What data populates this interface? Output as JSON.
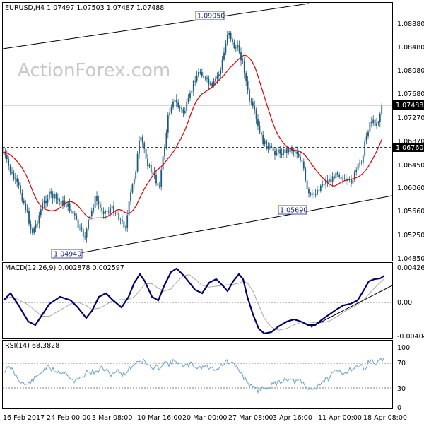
{
  "colors": {
    "candle": "#1f5a7a",
    "ma": "#e00000",
    "macd": "#00006e",
    "signal": "#aaaaaa",
    "rsi": "#6a9fd1",
    "grid": "#000000"
  },
  "watermark": "ActionForex.com",
  "main": {
    "title": "EURUSD,H4  1.07497 1.07503 1.07487 1.07488",
    "y_ticks": [
      "1.08880",
      "1.08480",
      "1.08080",
      "1.07680",
      "1.07270",
      "1.06870",
      "1.06450",
      "1.06060",
      "1.05660",
      "1.05250",
      "1.04850"
    ],
    "current_price": "1.07488",
    "marked_level": "1.06760",
    "annotations": [
      "1.09050",
      "1.05690",
      "1.04940"
    ]
  },
  "macd": {
    "title": "MACD(12,26,9) 0.002878 0.002597",
    "y_ticks": [
      "0.004266",
      "0.00",
      "-0.004046"
    ]
  },
  "rsi": {
    "title": "RSI(14) 68.3828",
    "y_ticks": [
      "100",
      "70",
      "30",
      "0"
    ]
  },
  "x_ticks": [
    "16 Feb 2017",
    "24 Feb 00:00",
    "3 Mar 08:00",
    "10 Mar 16:00",
    "20 Mar 00:00",
    "27 Mar 08:00",
    "3 Apr 16:00",
    "11 Apr 00:00",
    "18 Apr 08:00"
  ],
  "chart_data": [
    {
      "type": "candlestick",
      "title": "EURUSD,H4",
      "ylim": [
        1.0465,
        1.0915
      ],
      "key_points": [
        {
          "x": "16 Feb 2017",
          "y": 1.0676
        },
        {
          "x": "24 Feb 00:00",
          "y": 1.0494
        },
        {
          "x": "3 Mar 08:00",
          "y": 1.053
        },
        {
          "x": "10 Mar 16:00",
          "y": 1.064
        },
        {
          "x": "20 Mar 00:00",
          "y": 1.081
        },
        {
          "x": "27 Mar 08:00",
          "y": 1.0905
        },
        {
          "x": "3 Apr 16:00",
          "y": 1.068
        },
        {
          "x": "11 Apr 00:00",
          "y": 1.0569
        },
        {
          "x": "18 Apr 08:00",
          "y": 1.0749
        }
      ],
      "series": [
        {
          "name": "MA",
          "color": "#e00000"
        }
      ]
    },
    {
      "type": "line",
      "title": "MACD(12,26,9)",
      "ylim": [
        -0.0045,
        0.0047
      ],
      "series": [
        {
          "name": "MACD"
        },
        {
          "name": "Signal"
        }
      ]
    },
    {
      "type": "line",
      "title": "RSI(14)",
      "ylim": [
        0,
        100
      ],
      "levels": [
        70,
        30
      ]
    }
  ]
}
